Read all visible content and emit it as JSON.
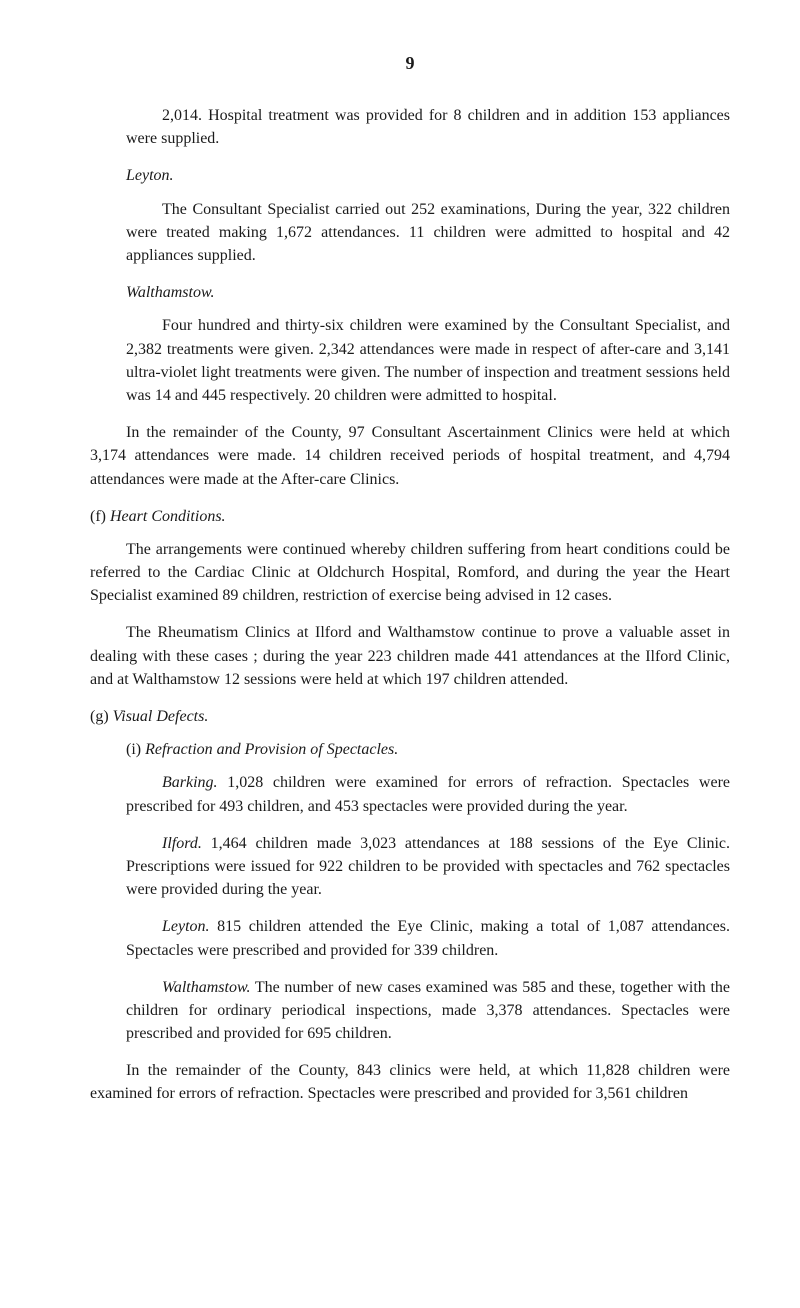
{
  "page_number": "9",
  "intro_para": "2,014. Hospital treatment was provided for 8 children and in addition 153 appliances were supplied.",
  "leyton": {
    "heading": "Leyton.",
    "para": "The Consultant Specialist carried out 252 examinations, During the year, 322 children were treated making 1,672 attendances. 11 children were admitted to hospital and 42 appliances supplied."
  },
  "walthamstow": {
    "heading": "Walthamstow.",
    "para": "Four hundred and thirty-six children were examined by the Consultant Specialist, and 2,382 treatments were given. 2,342 attendances were made in respect of after-care and 3,141 ultra-violet light treatments were given. The number of inspection and treatment sessions held was 14 and 445 respectively. 20 children were admitted to hospital."
  },
  "remainder_para": "In the remainder of the County, 97 Consultant Ascertainment Clinics were held at which 3,174 attendances were made. 14 children received periods of hospital treatment, and 4,794 attendances were made at the After-care Clinics.",
  "section_f": {
    "label": "(f)",
    "title": "Heart Conditions.",
    "para1": "The arrangements were continued whereby children suffering from heart conditions could be referred to the Cardiac Clinic at Oldchurch Hospital, Romford, and during the year the Heart Specialist examined 89 children, restriction of exercise being advised in 12 cases.",
    "para2": "The Rheumatism Clinics at Ilford and Walthamstow continue to prove a valuable asset in dealing with these cases ; during the year 223 children made 441 attendances at the Ilford Clinic, and at Walthamstow 12 sessions were held at which 197 children attended."
  },
  "section_g": {
    "label": "(g)",
    "title": "Visual Defects.",
    "sub_i": {
      "label": "(i)",
      "title": "Refraction and Provision of Spectacles.",
      "barking_loc": "Barking.",
      "barking_text": "1,028 children were examined for errors of refraction. Spectacles were prescribed for 493 children, and 453 spectacles were provided during the year.",
      "ilford_loc": "Ilford.",
      "ilford_text": "1,464 children made 3,023 attendances at 188 sessions of the Eye Clinic. Prescriptions were issued for 922 children to be provided with spectacles and 762 spectacles were provided during the year.",
      "leyton_loc": "Leyton.",
      "leyton_text": "815 children attended the Eye Clinic, making a total of 1,087 attendances. Spectacles were prescribed and provided for 339 children.",
      "walthamstow_loc": "Walthamstow.",
      "walthamstow_text": "The number of new cases examined was 585 and these, together with the children for ordinary periodical inspections, made 3,378 attendances. Spectacles were prescribed and provided for 695 children."
    },
    "closing_para": "In the remainder of the County, 843 clinics were held, at which 11,828 children were examined for errors of refraction. Spectacles were prescribed and provided for 3,561 children"
  }
}
